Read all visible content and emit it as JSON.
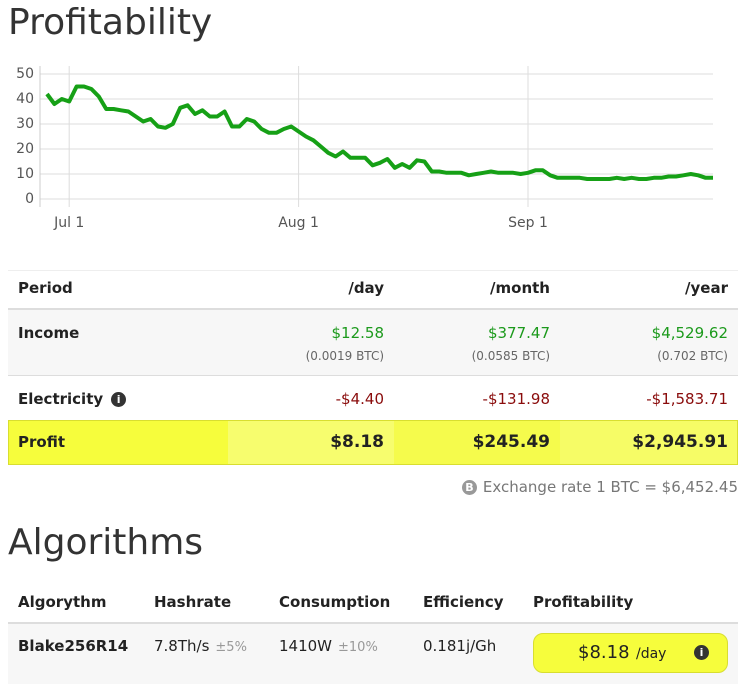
{
  "header": {
    "title": "Profitability"
  },
  "chart_data": {
    "type": "line",
    "color": "#16a016",
    "grid": true,
    "values": [
      42,
      38,
      40,
      39,
      45,
      45,
      44,
      41,
      36,
      36,
      35.5,
      35,
      33,
      31,
      32,
      29,
      28.5,
      30,
      36.5,
      37.5,
      34,
      35.5,
      33,
      33,
      35,
      29,
      29,
      32,
      31,
      28,
      26.5,
      26.5,
      28,
      29,
      27,
      25,
      23.5,
      21,
      18.5,
      17,
      19,
      16.5,
      16.5,
      16.5,
      13.5,
      14.5,
      16,
      12.5,
      14,
      12.5,
      15.5,
      15,
      11,
      11,
      10.5,
      10.5,
      10.5,
      9.5,
      10,
      10.5,
      11,
      10.5,
      10.5,
      10.5,
      10,
      10.5,
      11.5,
      11.5,
      9.5,
      8.5,
      8.5,
      8.5,
      8.5,
      8,
      8,
      8,
      8,
      8.5,
      8,
      8.5,
      8,
      8,
      8.5,
      8.5,
      9,
      9,
      9.5,
      10,
      9.5,
      8.5,
      8.5
    ],
    "xlim": [
      0,
      90
    ],
    "xticks": [
      {
        "value": 3,
        "label": "Jul 1"
      },
      {
        "value": 34,
        "label": "Aug 1"
      },
      {
        "value": 65,
        "label": "Sep 1"
      }
    ],
    "ylim": [
      0,
      50
    ],
    "yticks": [
      0,
      10,
      20,
      30,
      40,
      50
    ]
  },
  "table": {
    "header": [
      "Period",
      "/day",
      "/month",
      "/year"
    ],
    "rows": [
      {
        "label": "Income",
        "values": [
          "$12.58",
          "$377.47",
          "$4,529.62"
        ],
        "btc": [
          "(0.0019 BTC)",
          "(0.0585 BTC)",
          "(0.702 BTC)"
        ]
      },
      {
        "label": "Electricity",
        "values": [
          "-$4.40",
          "-$131.98",
          "-$1,583.71"
        ]
      },
      {
        "label": "Profit",
        "values": [
          "$8.18",
          "$245.49",
          "$2,945.91"
        ]
      }
    ],
    "exchange_rate": "Exchange rate 1 BTC = $6,452.45"
  },
  "algorithms": {
    "title": "Algorithms",
    "header": [
      "Algorythm",
      "Hashrate",
      "Consumption",
      "Efficiency",
      "Profitability"
    ],
    "row": {
      "name": "Blake256R14",
      "hashrate": "7.8Th/s",
      "hashrate_tol": "±5%",
      "consumption": "1410W",
      "consumption_tol": "±10%",
      "efficiency": "0.181j/Gh",
      "profit": "$8.18",
      "profit_unit": "/day"
    }
  }
}
